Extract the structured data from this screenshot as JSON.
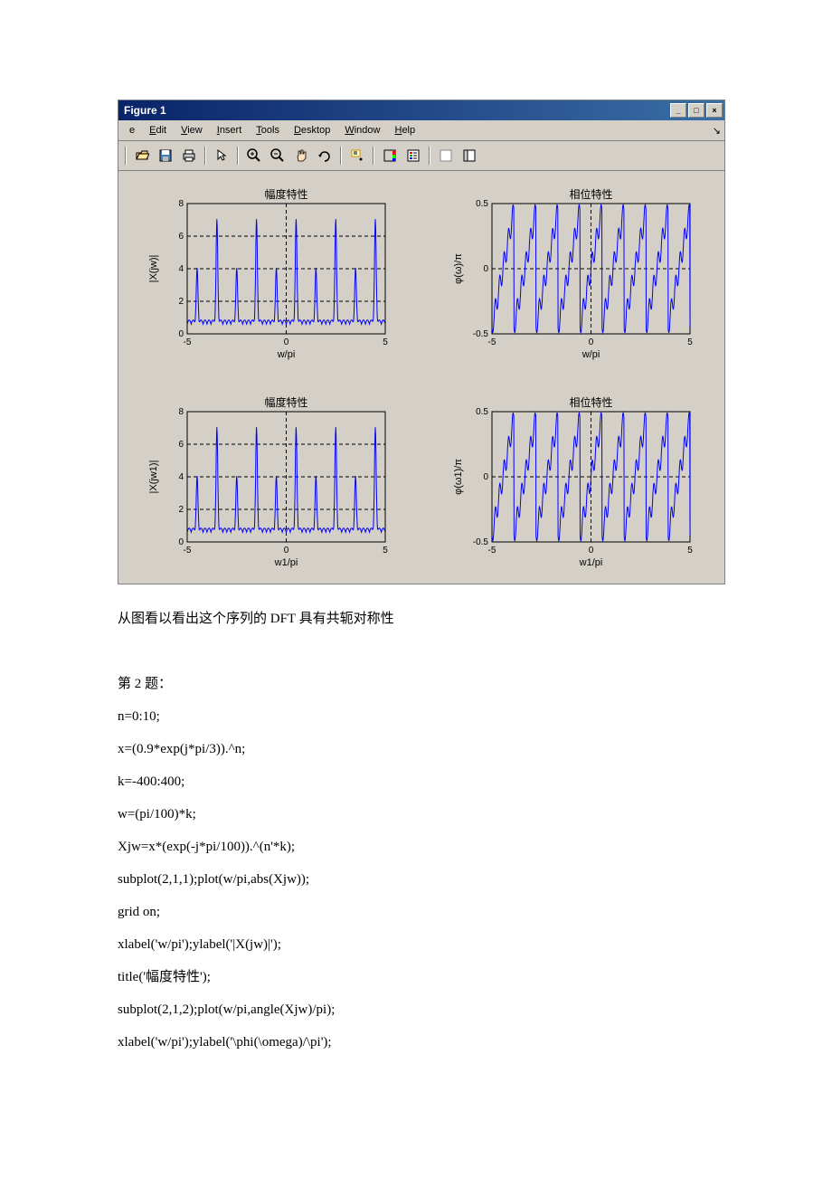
{
  "window": {
    "title": "Figure 1",
    "menus": [
      "e",
      "Edit",
      "View",
      "Insert",
      "Tools",
      "Desktop",
      "Window",
      "Help"
    ]
  },
  "subplots": {
    "bg_color": "#d4d0c8",
    "plot_bg": "#ffffff",
    "axis_color": "#000000",
    "grid_color": "#000000",
    "line_color": "#0000ff",
    "layout": [
      2,
      2
    ],
    "panels": [
      {
        "title": "幅度特性",
        "xlabel": "w/pi",
        "ylabel": "|X(jw)|",
        "xlim": [
          -5,
          5
        ],
        "ylim": [
          0,
          8
        ],
        "xticks": [
          -5,
          0,
          5
        ],
        "yticks": [
          0,
          2,
          4,
          6,
          8
        ]
      },
      {
        "title": "相位特性",
        "xlabel": "w/pi",
        "ylabel": "φ(ω)/π",
        "xlim": [
          -5,
          5
        ],
        "ylim": [
          -0.5,
          0.5
        ],
        "xticks": [
          -5,
          0,
          5
        ],
        "yticks": [
          -0.5,
          0,
          0.5
        ]
      },
      {
        "title": "幅度特性",
        "xlabel": "w1/pi",
        "ylabel": "|X(jw1)|",
        "xlim": [
          -5,
          5
        ],
        "ylim": [
          0,
          8
        ],
        "xticks": [
          -5,
          0,
          5
        ],
        "yticks": [
          0,
          2,
          4,
          6,
          8
        ]
      },
      {
        "title": "相位特性",
        "xlabel": "w1/pi",
        "ylabel": "φ(ω1)/π",
        "xlim": [
          -5,
          5
        ],
        "ylim": [
          -0.5,
          0.5
        ],
        "xticks": [
          -5,
          0,
          5
        ],
        "yticks": [
          -0.5,
          0,
          0.5
        ]
      }
    ]
  },
  "text": {
    "caption": "从图看以看出这个序列的 DFT 具有共轭对称性",
    "heading": "第 2 题：",
    "code": [
      "n=0:10;",
      "x=(0.9*exp(j*pi/3)).^n;",
      "k=-400:400;",
      "w=(pi/100)*k;",
      "Xjw=x*(exp(-j*pi/100)).^(n'*k);",
      "subplot(2,1,1);plot(w/pi,abs(Xjw));",
      "grid on;",
      "xlabel('w/pi');ylabel('|X(jw)|');",
      "title('幅度特性');",
      "subplot(2,1,2);plot(w/pi,angle(Xjw)/pi);",
      "xlabel('w/pi');ylabel('\\phi(\\omega)/\\pi');"
    ]
  }
}
